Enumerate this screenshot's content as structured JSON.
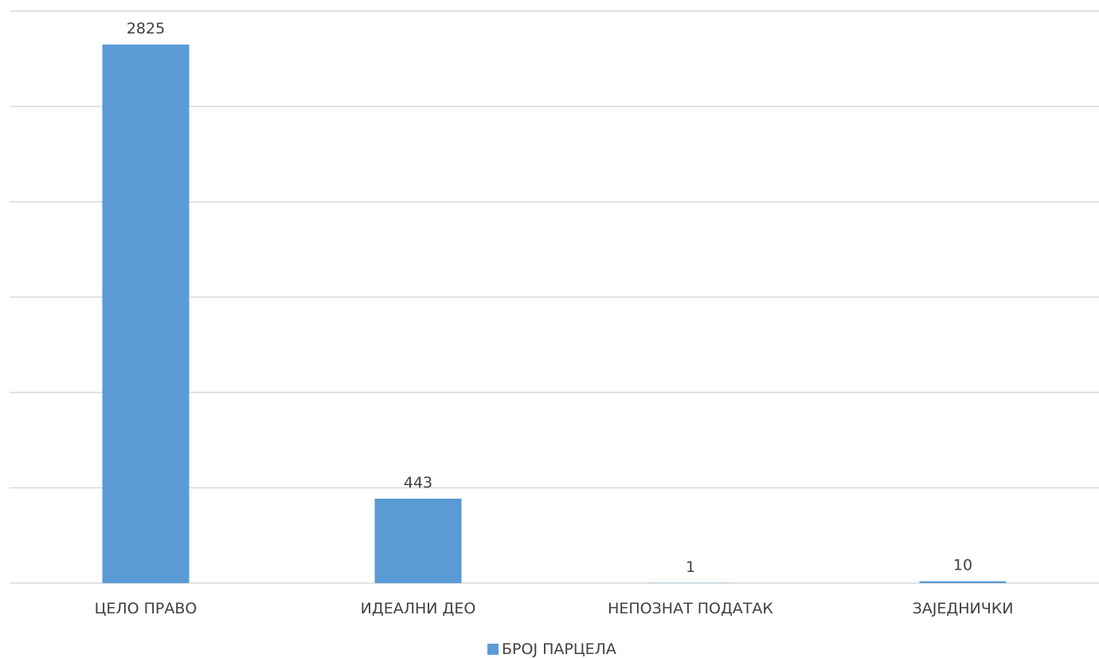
{
  "chart_data": {
    "type": "bar",
    "categories": [
      "ЦЕЛО ПРАВО",
      "ИДЕАЛНИ ДЕО",
      "НЕПОЗНАТ ПОДАТАК",
      "ЗАЈЕДНИЧКИ"
    ],
    "series": [
      {
        "name": "БРОЈ ПАРЦЕЛА",
        "values": [
          2825,
          443,
          1,
          10
        ],
        "color": "#5b9bd5"
      }
    ],
    "ylim": [
      0,
      3000
    ],
    "yticks": [
      0,
      500,
      1000,
      1500,
      2000,
      2500,
      3000
    ],
    "grid": true,
    "legend_position": "bottom",
    "data_labels": [
      "2825",
      "443",
      "1",
      "10"
    ]
  }
}
